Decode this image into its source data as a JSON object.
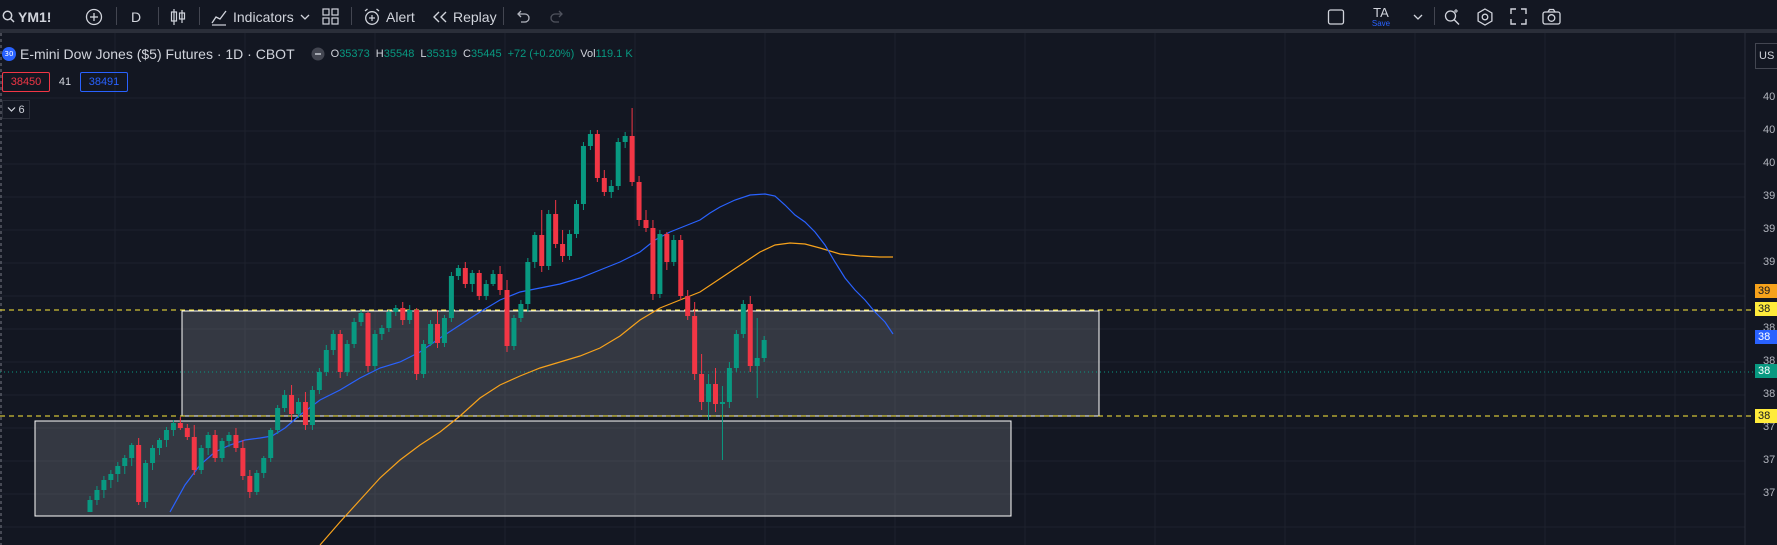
{
  "toolbar": {
    "symbol": "YM1!",
    "interval": "D",
    "indicators_label": "Indicators",
    "alert_label": "Alert",
    "replay_label": "Replay",
    "layout_name": "TA",
    "layout_status": "Save"
  },
  "legend": {
    "badge": "30",
    "title": "E-mini Dow Jones ($5) Futures · 1D · CBOT",
    "o_label": "O",
    "o_value": "35373",
    "h_label": "H",
    "h_value": "35548",
    "l_label": "L",
    "l_value": "35319",
    "c_label": "C",
    "c_value": "35445",
    "change": "+72 (+0.20%)",
    "vol_label": "Vol",
    "vol_value": "119.1 K"
  },
  "price_boxes": {
    "sell": "38450",
    "spread": "41",
    "buy": "38491"
  },
  "indicators_collapsed_count": "6",
  "price_axis": {
    "currency": "US",
    "labels": [
      "40",
      "40",
      "40",
      "39",
      "39",
      "39",
      "38",
      "38",
      "38",
      "37",
      "37",
      "37"
    ],
    "tags": [
      {
        "text": "39",
        "color": "#f7a21b"
      },
      {
        "text": "38",
        "color": "#ffeb3b"
      },
      {
        "text": "38",
        "color": "#2962ff"
      },
      {
        "text": "38",
        "color": "#089981"
      },
      {
        "text": "38",
        "color": "#ffeb3b"
      }
    ]
  },
  "colors": {
    "up": "#089981",
    "down": "#f23645",
    "ma_fast": "#2962ff",
    "ma_slow": "#f7a21b",
    "level": "#ffeb3b"
  }
}
